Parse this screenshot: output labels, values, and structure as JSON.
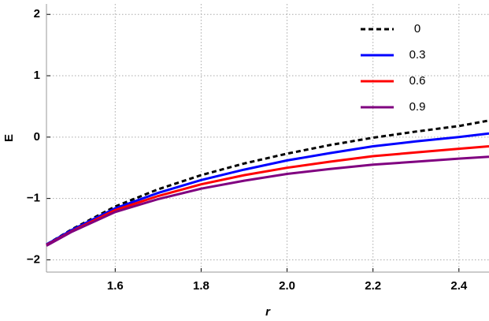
{
  "chart_data": {
    "type": "line",
    "x_label": "r",
    "y_label": "E",
    "x": [
      1.44,
      1.5,
      1.6,
      1.7,
      1.8,
      1.9,
      2.0,
      2.1,
      2.2,
      2.3,
      2.4,
      2.47
    ],
    "series": [
      {
        "name": "0",
        "color": "#000000",
        "dashed": true,
        "values": [
          -1.75,
          -1.5,
          -1.13,
          -0.85,
          -0.62,
          -0.43,
          -0.27,
          -0.13,
          -0.01,
          0.09,
          0.18,
          0.27
        ]
      },
      {
        "name": "0.3",
        "color": "#0000ff",
        "dashed": false,
        "values": [
          -1.75,
          -1.51,
          -1.16,
          -0.91,
          -0.7,
          -0.53,
          -0.38,
          -0.26,
          -0.15,
          -0.07,
          0.0,
          0.06
        ]
      },
      {
        "name": "0.6",
        "color": "#ff0000",
        "dashed": false,
        "values": [
          -1.76,
          -1.53,
          -1.19,
          -0.96,
          -0.77,
          -0.62,
          -0.5,
          -0.4,
          -0.31,
          -0.25,
          -0.19,
          -0.15
        ]
      },
      {
        "name": "0.9",
        "color": "#800080",
        "dashed": false,
        "values": [
          -1.77,
          -1.54,
          -1.22,
          -1.01,
          -0.84,
          -0.71,
          -0.6,
          -0.52,
          -0.45,
          -0.4,
          -0.35,
          -0.32
        ]
      }
    ],
    "xlim": [
      1.44,
      2.47
    ],
    "ylim": [
      -2.2,
      2.17
    ],
    "xticks": [
      1.6,
      1.8,
      {
        "value": 2,
        "label": "2.0"
      },
      2.2,
      2.4
    ],
    "yticks": [
      {
        "value": -2,
        "label": "−2"
      },
      {
        "value": -1,
        "label": "−1"
      },
      0,
      1,
      2
    ],
    "grid": true,
    "legend": "upper-right"
  }
}
